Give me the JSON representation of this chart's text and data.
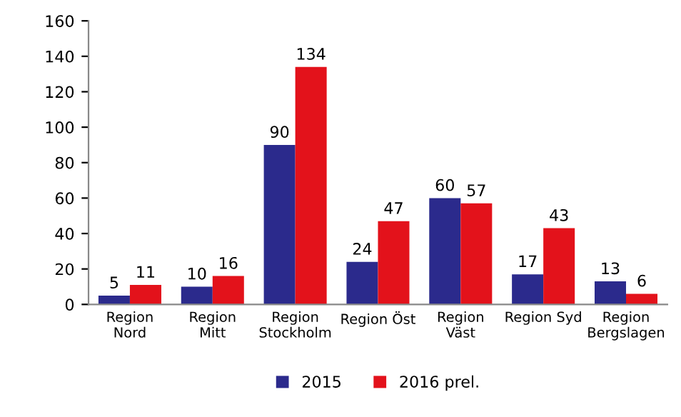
{
  "chart_data": {
    "type": "bar",
    "categories": [
      "Region\nNord",
      "Region\nMitt",
      "Region\nStockholm",
      "Region Öst",
      "Region\nVäst",
      "Region Syd",
      "Region\nBergslagen"
    ],
    "series": [
      {
        "name": "2015",
        "color": "#2b2a8c",
        "values": [
          5,
          10,
          90,
          24,
          60,
          17,
          13
        ]
      },
      {
        "name": "2016 prel.",
        "color": "#e3121b",
        "values": [
          11,
          16,
          134,
          47,
          57,
          43,
          6
        ]
      }
    ],
    "ylim": [
      0,
      160
    ],
    "yticks": [
      0,
      20,
      40,
      60,
      80,
      100,
      120,
      140,
      160
    ],
    "data_labels": true,
    "grid": false,
    "legend": "bottom"
  }
}
